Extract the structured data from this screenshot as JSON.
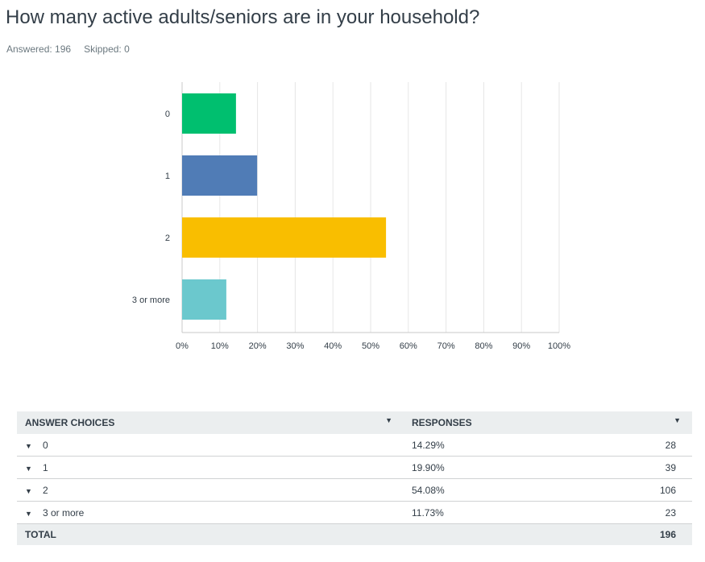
{
  "question": {
    "title": "How many active adults/seniors are in your household?",
    "answered_label": "Answered: 196",
    "skipped_label": "Skipped: 0"
  },
  "chart_data": {
    "type": "bar",
    "orientation": "horizontal",
    "categories": [
      "0",
      "1",
      "2",
      "3 or more"
    ],
    "values": [
      14.29,
      19.9,
      54.08,
      11.73
    ],
    "colors": [
      "#00bf6f",
      "#507cb6",
      "#f9be00",
      "#6bc8cd"
    ],
    "xlim": [
      0,
      100
    ],
    "x_ticks": [
      "0%",
      "10%",
      "20%",
      "30%",
      "40%",
      "50%",
      "60%",
      "70%",
      "80%",
      "90%",
      "100%"
    ],
    "grid": true
  },
  "table": {
    "headers": {
      "choice": "ANSWER CHOICES",
      "responses": "RESPONSES"
    },
    "rows": [
      {
        "choice": "0",
        "percent": "14.29%",
        "count": "28"
      },
      {
        "choice": "1",
        "percent": "19.90%",
        "count": "39"
      },
      {
        "choice": "2",
        "percent": "54.08%",
        "count": "106"
      },
      {
        "choice": "3 or more",
        "percent": "11.73%",
        "count": "23"
      }
    ],
    "total_label": "TOTAL",
    "total_count": "196",
    "caret_glyph": "▼"
  }
}
